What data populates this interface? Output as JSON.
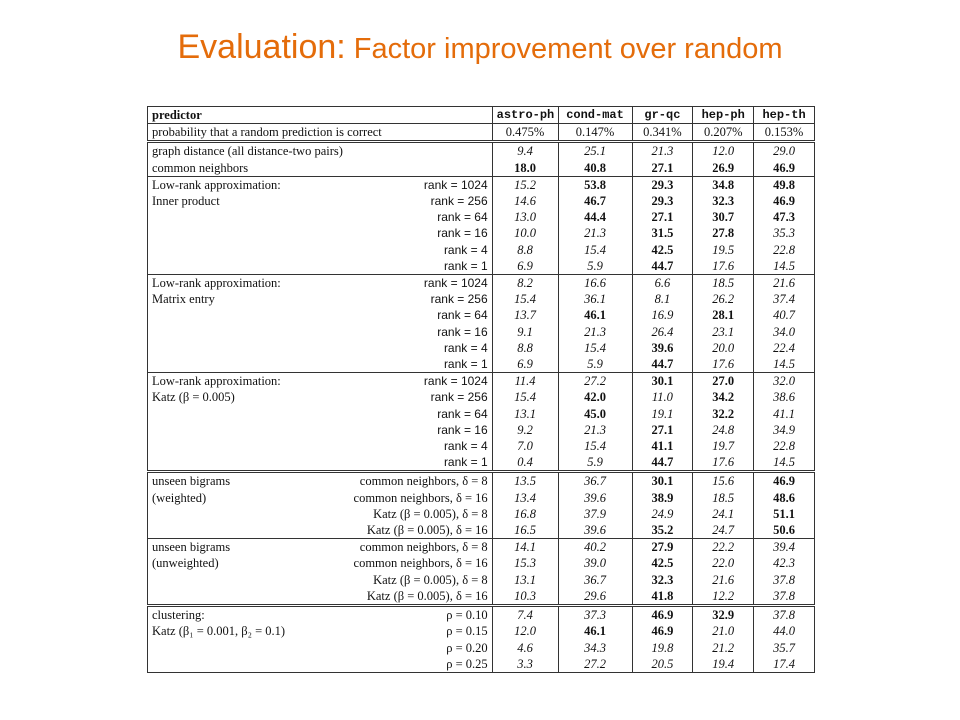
{
  "slide": {
    "title_main": "Evaluation:",
    "title_sub": " Factor improvement over random"
  },
  "table": {
    "header": {
      "predictor": "predictor",
      "columns": [
        "astro-ph",
        "cond-mat",
        "gr-qc",
        "hep-ph",
        "hep-th"
      ]
    },
    "random_row": {
      "label": "probability that a random prediction is correct",
      "values": [
        "0.475%",
        "0.147%",
        "0.341%",
        "0.207%",
        "0.153%"
      ]
    },
    "groups": [
      {
        "rows": [
          {
            "name": "graph distance (all distance-two pairs)",
            "param": "",
            "values": [
              "9.4",
              "25.1",
              "21.3",
              "12.0",
              "29.0"
            ],
            "bold": [
              false,
              false,
              false,
              false,
              false
            ]
          },
          {
            "name": "common neighbors",
            "param": "",
            "values": [
              "18.0",
              "40.8",
              "27.1",
              "26.9",
              "46.9"
            ],
            "bold": [
              true,
              true,
              true,
              true,
              true
            ]
          }
        ]
      },
      {
        "rows": [
          {
            "name": "Low-rank approximation:",
            "param": "rank = 1024",
            "values": [
              "15.2",
              "53.8",
              "29.3",
              "34.8",
              "49.8"
            ],
            "bold": [
              false,
              true,
              true,
              true,
              true
            ]
          },
          {
            "name": "Inner product",
            "param": "rank = 256",
            "values": [
              "14.6",
              "46.7",
              "29.3",
              "32.3",
              "46.9"
            ],
            "bold": [
              false,
              true,
              true,
              true,
              true
            ]
          },
          {
            "name": "",
            "param": "rank = 64",
            "values": [
              "13.0",
              "44.4",
              "27.1",
              "30.7",
              "47.3"
            ],
            "bold": [
              false,
              true,
              true,
              true,
              true
            ]
          },
          {
            "name": "",
            "param": "rank = 16",
            "values": [
              "10.0",
              "21.3",
              "31.5",
              "27.8",
              "35.3"
            ],
            "bold": [
              false,
              false,
              true,
              true,
              false
            ]
          },
          {
            "name": "",
            "param": "rank = 4",
            "values": [
              "8.8",
              "15.4",
              "42.5",
              "19.5",
              "22.8"
            ],
            "bold": [
              false,
              false,
              true,
              false,
              false
            ]
          },
          {
            "name": "",
            "param": "rank = 1",
            "values": [
              "6.9",
              "5.9",
              "44.7",
              "17.6",
              "14.5"
            ],
            "bold": [
              false,
              false,
              true,
              false,
              false
            ]
          }
        ]
      },
      {
        "rows": [
          {
            "name": "Low-rank approximation:",
            "param": "rank = 1024",
            "values": [
              "8.2",
              "16.6",
              "6.6",
              "18.5",
              "21.6"
            ],
            "bold": [
              false,
              false,
              false,
              false,
              false
            ]
          },
          {
            "name": "Matrix entry",
            "param": "rank = 256",
            "values": [
              "15.4",
              "36.1",
              "8.1",
              "26.2",
              "37.4"
            ],
            "bold": [
              false,
              false,
              false,
              false,
              false
            ]
          },
          {
            "name": "",
            "param": "rank = 64",
            "values": [
              "13.7",
              "46.1",
              "16.9",
              "28.1",
              "40.7"
            ],
            "bold": [
              false,
              true,
              false,
              true,
              false
            ]
          },
          {
            "name": "",
            "param": "rank = 16",
            "values": [
              "9.1",
              "21.3",
              "26.4",
              "23.1",
              "34.0"
            ],
            "bold": [
              false,
              false,
              false,
              false,
              false
            ]
          },
          {
            "name": "",
            "param": "rank = 4",
            "values": [
              "8.8",
              "15.4",
              "39.6",
              "20.0",
              "22.4"
            ],
            "bold": [
              false,
              false,
              true,
              false,
              false
            ]
          },
          {
            "name": "",
            "param": "rank = 1",
            "values": [
              "6.9",
              "5.9",
              "44.7",
              "17.6",
              "14.5"
            ],
            "bold": [
              false,
              false,
              true,
              false,
              false
            ]
          }
        ]
      },
      {
        "rows": [
          {
            "name": "Low-rank approximation:",
            "param": "rank = 1024",
            "values": [
              "11.4",
              "27.2",
              "30.1",
              "27.0",
              "32.0"
            ],
            "bold": [
              false,
              false,
              true,
              true,
              false
            ]
          },
          {
            "name": "Katz (β = 0.005)",
            "param": "rank = 256",
            "values": [
              "15.4",
              "42.0",
              "11.0",
              "34.2",
              "38.6"
            ],
            "bold": [
              false,
              true,
              false,
              true,
              false
            ]
          },
          {
            "name": "",
            "param": "rank = 64",
            "values": [
              "13.1",
              "45.0",
              "19.1",
              "32.2",
              "41.1"
            ],
            "bold": [
              false,
              true,
              false,
              true,
              false
            ]
          },
          {
            "name": "",
            "param": "rank = 16",
            "values": [
              "9.2",
              "21.3",
              "27.1",
              "24.8",
              "34.9"
            ],
            "bold": [
              false,
              false,
              true,
              false,
              false
            ]
          },
          {
            "name": "",
            "param": "rank = 4",
            "values": [
              "7.0",
              "15.4",
              "41.1",
              "19.7",
              "22.8"
            ],
            "bold": [
              false,
              false,
              true,
              false,
              false
            ]
          },
          {
            "name": "",
            "param": "rank = 1",
            "values": [
              "0.4",
              "5.9",
              "44.7",
              "17.6",
              "14.5"
            ],
            "bold": [
              false,
              false,
              true,
              false,
              false
            ]
          }
        ]
      },
      {
        "rows": [
          {
            "name": "unseen bigrams",
            "param": "common neighbors, δ = 8",
            "values": [
              "13.5",
              "36.7",
              "30.1",
              "15.6",
              "46.9"
            ],
            "bold": [
              false,
              false,
              true,
              false,
              true
            ]
          },
          {
            "name": "(weighted)",
            "param": "common neighbors, δ = 16",
            "values": [
              "13.4",
              "39.6",
              "38.9",
              "18.5",
              "48.6"
            ],
            "bold": [
              false,
              false,
              true,
              false,
              true
            ]
          },
          {
            "name": "",
            "param": "Katz (β = 0.005), δ = 8",
            "values": [
              "16.8",
              "37.9",
              "24.9",
              "24.1",
              "51.1"
            ],
            "bold": [
              false,
              false,
              false,
              false,
              true
            ]
          },
          {
            "name": "",
            "param": "Katz (β = 0.005), δ = 16",
            "values": [
              "16.5",
              "39.6",
              "35.2",
              "24.7",
              "50.6"
            ],
            "bold": [
              false,
              false,
              true,
              false,
              true
            ]
          }
        ]
      },
      {
        "rows": [
          {
            "name": "unseen bigrams",
            "param": "common neighbors, δ = 8",
            "values": [
              "14.1",
              "40.2",
              "27.9",
              "22.2",
              "39.4"
            ],
            "bold": [
              false,
              false,
              true,
              false,
              false
            ]
          },
          {
            "name": "(unweighted)",
            "param": "common neighbors, δ = 16",
            "values": [
              "15.3",
              "39.0",
              "42.5",
              "22.0",
              "42.3"
            ],
            "bold": [
              false,
              false,
              true,
              false,
              false
            ]
          },
          {
            "name": "",
            "param": "Katz (β = 0.005), δ = 8",
            "values": [
              "13.1",
              "36.7",
              "32.3",
              "21.6",
              "37.8"
            ],
            "bold": [
              false,
              false,
              true,
              false,
              false
            ]
          },
          {
            "name": "",
            "param": "Katz (β = 0.005), δ = 16",
            "values": [
              "10.3",
              "29.6",
              "41.8",
              "12.2",
              "37.8"
            ],
            "bold": [
              false,
              false,
              true,
              false,
              false
            ]
          }
        ]
      },
      {
        "rows": [
          {
            "name": "clustering:",
            "param": "ρ = 0.10",
            "values": [
              "7.4",
              "37.3",
              "46.9",
              "32.9",
              "37.8"
            ],
            "bold": [
              false,
              false,
              true,
              true,
              false
            ]
          },
          {
            "name": "Katz (β₁ = 0.001, β₂ = 0.1)",
            "param": "ρ = 0.15",
            "values": [
              "12.0",
              "46.1",
              "46.9",
              "21.0",
              "44.0"
            ],
            "bold": [
              false,
              true,
              true,
              false,
              false
            ]
          },
          {
            "name": "",
            "param": "ρ = 0.20",
            "values": [
              "4.6",
              "34.3",
              "19.8",
              "21.2",
              "35.7"
            ],
            "bold": [
              false,
              false,
              false,
              false,
              false
            ]
          },
          {
            "name": "",
            "param": "ρ = 0.25",
            "values": [
              "3.3",
              "27.2",
              "20.5",
              "19.4",
              "17.4"
            ],
            "bold": [
              false,
              false,
              false,
              false,
              false
            ]
          }
        ]
      }
    ]
  }
}
